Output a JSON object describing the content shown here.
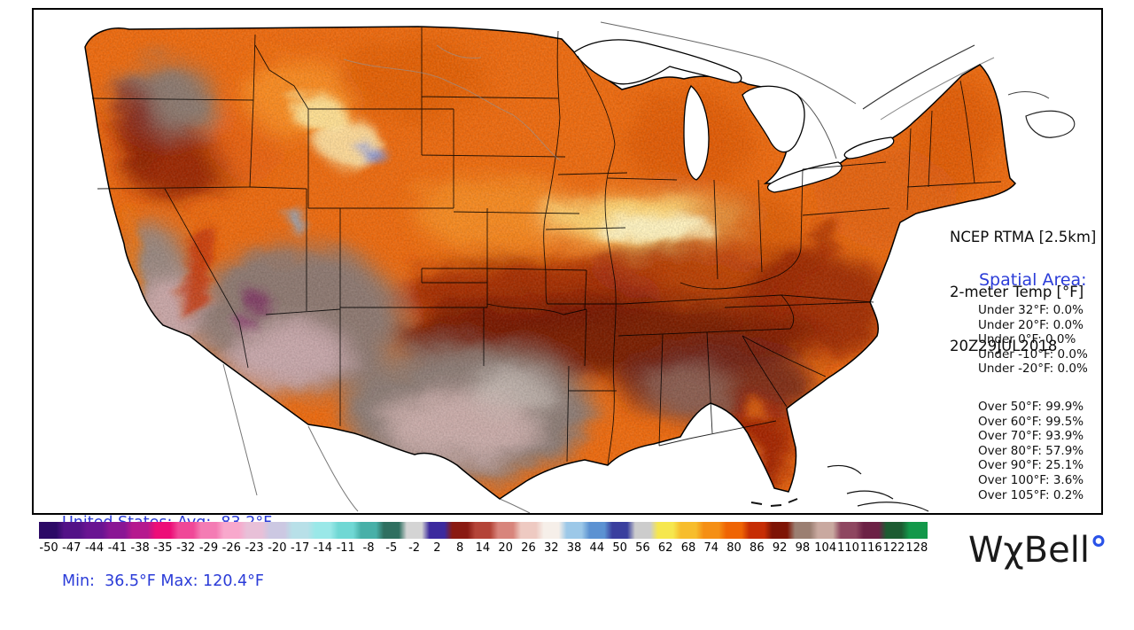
{
  "panel": {
    "title_lines": [
      "NCEP RTMA [2.5km]",
      "2-meter Temp [°F]",
      "20Z29JUL2018"
    ],
    "spatial_title": "Spatial Area:",
    "spatial_color": "#2b3cd8",
    "under_stats": [
      "Under 32°F: 0.0%",
      "Under 20°F: 0.0%",
      "Under 0°F: 0.0%",
      "Under -10°F: 0.0%",
      "Under -20°F: 0.0%"
    ],
    "over_stats": [
      "Over 50°F: 99.9%",
      "Over 60°F: 99.5%",
      "Over 70°F: 93.9%",
      "Over 80°F: 57.9%",
      "Over 90°F: 25.1%",
      "Over 100°F: 3.6%",
      "Over 105°F: 0.2%"
    ]
  },
  "summary": {
    "line1": "United States: Avg:  83.2°F",
    "line2": "Min:  36.5°F Max: 120.4°F",
    "color": "#2b3cd8"
  },
  "colorbar": {
    "ticks": [
      -50,
      -47,
      -44,
      -41,
      -38,
      -35,
      -32,
      -29,
      -26,
      -23,
      -20,
      -17,
      -14,
      -11,
      -8,
      -5,
      -2,
      2,
      8,
      14,
      20,
      26,
      32,
      38,
      44,
      50,
      56,
      62,
      68,
      74,
      80,
      86,
      92,
      98,
      104,
      110,
      116,
      122,
      128
    ],
    "colors": [
      "#2c0a66",
      "#531287",
      "#6a1492",
      "#8a1694",
      "#b5188e",
      "#ed0e78",
      "#f04898",
      "#f47cb4",
      "#f8a8cc",
      "#e8c0d8",
      "#ccc8e2",
      "#b8e0e8",
      "#9ae8e8",
      "#70d8d4",
      "#48b0a8",
      "#2f6f60",
      "#d4d4d4",
      "#3c2a9e",
      "#8a1a12",
      "#b44438",
      "#d8857c",
      "#eecac2",
      "#f6efe9",
      "#9cc8e8",
      "#5c92d2",
      "#3a3f9e",
      "#cccccc",
      "#f6e74e",
      "#f7bd2c",
      "#f58f14",
      "#ef6404",
      "#c62d04",
      "#7e1405",
      "#9b7f72",
      "#c9a9a0",
      "#8e4660",
      "#6c2145",
      "#1d5c32",
      "#13984a"
    ]
  },
  "logo": {
    "text": "WχBell",
    "degree": "°",
    "degree_color": "#2952e8"
  }
}
